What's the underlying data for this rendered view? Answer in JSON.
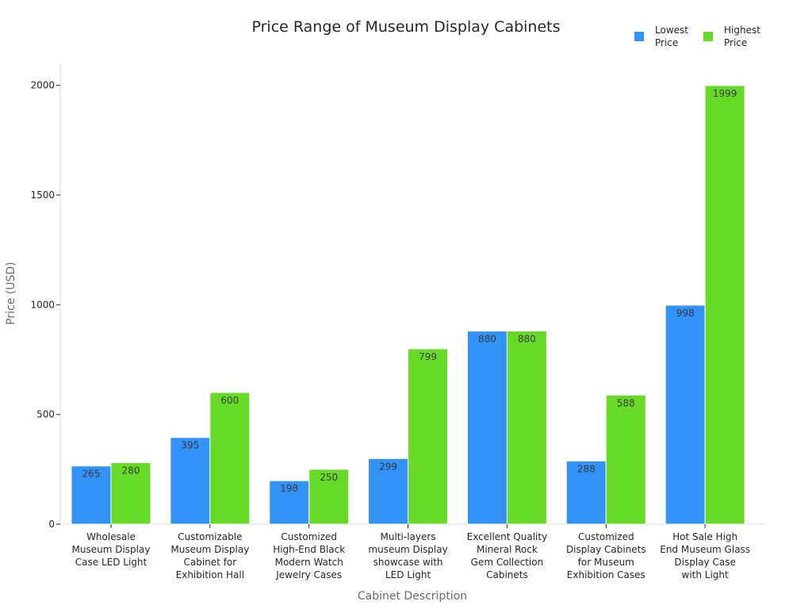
{
  "chart_data": {
    "type": "bar",
    "title": "Price Range of Museum Display Cabinets",
    "xlabel": "Cabinet Description",
    "ylabel": "Price (USD)",
    "ylim": [
      0,
      2100
    ],
    "yticks": [
      0,
      500,
      1000,
      1500,
      2000
    ],
    "grid": false,
    "legend_position": "top-right",
    "categories": [
      [
        "Wholesale",
        "Museum Display",
        "Case LED Light"
      ],
      [
        "Customizable",
        "Museum Display",
        "Cabinet for",
        "Exhibition Hall"
      ],
      [
        "Customized",
        "High-End Black",
        "Modern Watch",
        "Jewelry Cases"
      ],
      [
        "Multi-layers",
        "museum Display",
        "showcase with",
        "LED Light"
      ],
      [
        "Excellent Quality",
        "Mineral Rock",
        "Gem Collection",
        "Cabinets"
      ],
      [
        "Customized",
        "Display Cabinets",
        "for Museum",
        "Exhibition Cases"
      ],
      [
        "Hot Sale High",
        "End Museum Glass",
        "Display Case",
        "with Light"
      ]
    ],
    "series": [
      {
        "name": [
          "Lowest",
          "Price"
        ],
        "color": "#3292f5",
        "values": [
          265,
          395,
          198,
          299,
          880,
          288,
          998
        ]
      },
      {
        "name": [
          "Highest",
          "Price"
        ],
        "color": "#66da26",
        "values": [
          280,
          600,
          250,
          799,
          880,
          588,
          1999
        ]
      }
    ]
  }
}
